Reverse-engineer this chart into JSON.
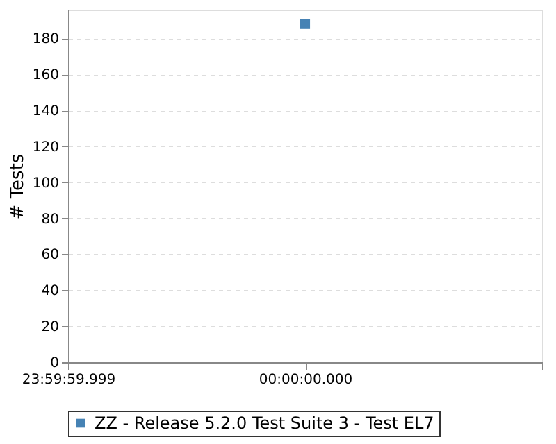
{
  "chart_data": {
    "type": "scatter",
    "ylabel": "# Tests",
    "categories": [
      "23:59:59.999",
      "00:00:00.000",
      null
    ],
    "series": [
      {
        "name": "ZZ - Release 5.2.0 Test Suite 3 - Test EL7",
        "color": "#4682b4",
        "values": [
          null,
          188,
          null
        ]
      }
    ],
    "ylim": [
      0,
      196
    ],
    "yticks": [
      0,
      20,
      40,
      60,
      80,
      100,
      120,
      140,
      160,
      180
    ],
    "grid": "y",
    "legend": "bottom",
    "marker": "square"
  }
}
